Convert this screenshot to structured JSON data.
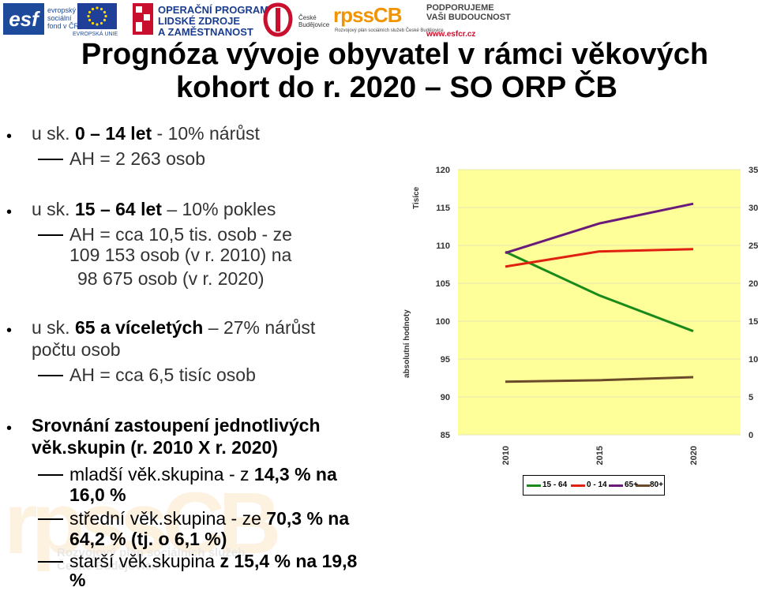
{
  "logos": {
    "esf": {
      "mark": "esf",
      "text": [
        "evropský",
        "sociální",
        "fond v ČR"
      ]
    },
    "eu": {
      "text": "EVROPSKÁ UNIE"
    },
    "op": {
      "lines": [
        "OPERAČNÍ PROGRAM",
        "LIDSKÉ ZDROJE",
        "A ZAMĚSTNANOST"
      ]
    },
    "cb": {
      "lines": [
        "České",
        "Budějovice"
      ]
    },
    "rpss": {
      "mark": "rpssCB",
      "sub": "Rozvojový plán sociálních služeb České Budějovice"
    },
    "podporujeme": {
      "lines": [
        "PODPORUJEME",
        "VAŠI BUDOUCNOST"
      ],
      "url": "www.esfcr.cz"
    }
  },
  "title": {
    "line1": "Prognóza vývoje obyvatel v rámci věkových",
    "line2": "kohort do r. 2020 – SO ORP ČB"
  },
  "content": {
    "b1": {
      "pre": "u sk. ",
      "bold": "0 – 14 let",
      "post": " - 10% nárůst"
    },
    "b1_sub": "AH = 2 263 osob",
    "b2": {
      "pre": "u sk. ",
      "bold": "15 – 64 let",
      "post": " – 10% pokles"
    },
    "b2_sub1": "AH = cca 10,5 tis. osob - ze",
    "b2_sub2": "109 153 osob (v r. 2010) na",
    "b2_sub3": "98 675 osob (v r. 2020)",
    "b3": {
      "pre": "u sk. ",
      "bold": "65 a víceletých",
      "post": " – 27% nárůst"
    },
    "b3_line2": "počtu osob",
    "b3_sub": "AH = cca 6,5 tisíc osob",
    "b4_line1": "Srovnání zastoupení jednotlivých",
    "b4_line2": "věk.skupin (r. 2010 X r. 2020)",
    "b4_sub1": {
      "pre": "mladší věk.skupina - z ",
      "bold": "14,3 % na"
    },
    "b4_sub1b": "16,0 %",
    "b4_sub2": {
      "pre": "střední věk.skupina - ze ",
      "bold": "70,3 % na"
    },
    "b4_sub2b": "64,2 % (tj. o 6,1 %)",
    "b4_sub3": {
      "pre": "starší věk.skupina ",
      "bold": "z 15,4 % na 19,8"
    },
    "b4_sub3b": "%"
  },
  "watermark": {
    "mark": "rpssCB",
    "lines": [
      "Rozvojový plán sociálních služeb",
      "České Budějovice"
    ]
  },
  "chart_data": {
    "type": "line",
    "x": [
      2010,
      2015,
      2020
    ],
    "x_tick_labels": [
      "2010",
      "2015",
      "2020"
    ],
    "ylabel": "absolutní hodnoty",
    "ylabel_unit": "Tisíce",
    "ylim": [
      85,
      120
    ],
    "y_ticks": [
      85,
      90,
      95,
      100,
      105,
      110,
      115,
      120
    ],
    "y2lim": [
      0,
      35
    ],
    "y2_ticks": [
      0,
      5,
      10,
      15,
      20,
      25,
      30,
      35
    ],
    "series": [
      {
        "name": "15 - 64",
        "axis": "left",
        "color": "#1a8a1a",
        "values": [
          109.15,
          103.4,
          98.68
        ]
      },
      {
        "name": "0 - 14",
        "axis": "right",
        "color": "#e02010",
        "values": [
          22.2,
          24.2,
          24.5
        ]
      },
      {
        "name": "65+",
        "axis": "right",
        "color": "#6a1a7a",
        "values": [
          24.0,
          27.9,
          30.5
        ]
      },
      {
        "name": "80+",
        "axis": "right",
        "color": "#6b4a2a",
        "values": [
          7.0,
          7.2,
          7.6
        ]
      }
    ],
    "plot_bg": "#ffff99",
    "grid": true,
    "legend": "bottom"
  }
}
